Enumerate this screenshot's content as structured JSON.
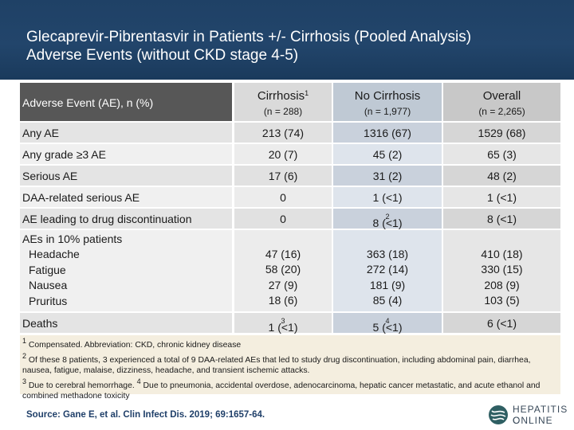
{
  "slide": {
    "title_line1": "Glecaprevir-Pibrentasvir in Patients +/- Cirrhosis (Pooled Analysis)",
    "title_line2": "Adverse Events (without CKD stage 4-5)"
  },
  "table": {
    "header": {
      "label": "Adverse Event (AE), n (%)",
      "columns": [
        {
          "name": "Cirrhosis",
          "sup": "1",
          "n": "(n = 288)"
        },
        {
          "name": "No Cirrhosis",
          "sup": "",
          "n": "(n = 1,977)"
        },
        {
          "name": "Overall",
          "sup": "",
          "n": "(n = 2,265)"
        }
      ]
    },
    "rows": [
      {
        "label": "Any AE",
        "c1": "213 (74)",
        "c2": "1316 (67)",
        "c3": "1529 (68)"
      },
      {
        "label": "Any grade ≥3 AE",
        "c1": "20 (7)",
        "c2": "45 (2)",
        "c3": "65 (3)"
      },
      {
        "label": "Serious AE",
        "c1": "17 (6)",
        "c2": "31 (2)",
        "c3": "48 (2)"
      },
      {
        "label": "DAA-related serious AE",
        "c1": "0",
        "c2": "1 (<1)",
        "c3": "1 (<1)"
      },
      {
        "label": "AE leading to drug discontinuation",
        "c1": "0",
        "c2": "8 (<1)",
        "c2_sup": "2",
        "c3": "8 (<1)"
      }
    ],
    "ae10": {
      "label": "AEs in 10% patients",
      "items": [
        {
          "label": "Headache",
          "c1": "47 (16)",
          "c2": "363 (18)",
          "c3": "410 (18)"
        },
        {
          "label": "Fatigue",
          "c1": "58 (20)",
          "c2": "272 (14)",
          "c3": "330 (15)"
        },
        {
          "label": "Nausea",
          "c1": "27 (9)",
          "c2": "181 (9)",
          "c3": "208 (9)"
        },
        {
          "label": "Pruritus",
          "c1": "18 (6)",
          "c2": "85 (4)",
          "c3": "103 (5)"
        }
      ]
    },
    "deaths": {
      "label": "Deaths",
      "c1": "1 (<1)",
      "c1_sup": "3",
      "c2": "5 (<1)",
      "c2_sup": "4",
      "c3": "6 (<1)"
    }
  },
  "footnotes": {
    "n1_sup": "1",
    "n1": " Compensated. Abbreviation: CKD, chronic kidney disease",
    "n2_sup": "2",
    "n2": " Of these 8 patients, 3 experienced a total of 9 DAA-related AEs that led to study drug discontinuation, including abdominal pain, diarrhea, nausea, fatigue, malaise, dizziness, headache, and transient ischemic attacks.",
    "n3_sup": "3",
    "n3": " Due to cerebral hemorrhage. ",
    "n4_sup": "4",
    "n4": " Due to pneumonia, accidental overdose, adenocarcinoma, hepatic cancer metastatic, and acute ethanol and combined methadone toxicity"
  },
  "source": "Source: Gane E, et al. Clin Infect Dis. 2019; 69:1657-64.",
  "logo": {
    "line1": "HEPATITIS C",
    "line2": "ONLINE",
    "icon": "hepatitis-c-online-logo-icon"
  },
  "colors": {
    "header_bg": "#1f4166",
    "footnote_bg": "#f4eedf",
    "source_text": "#1f3f69"
  }
}
